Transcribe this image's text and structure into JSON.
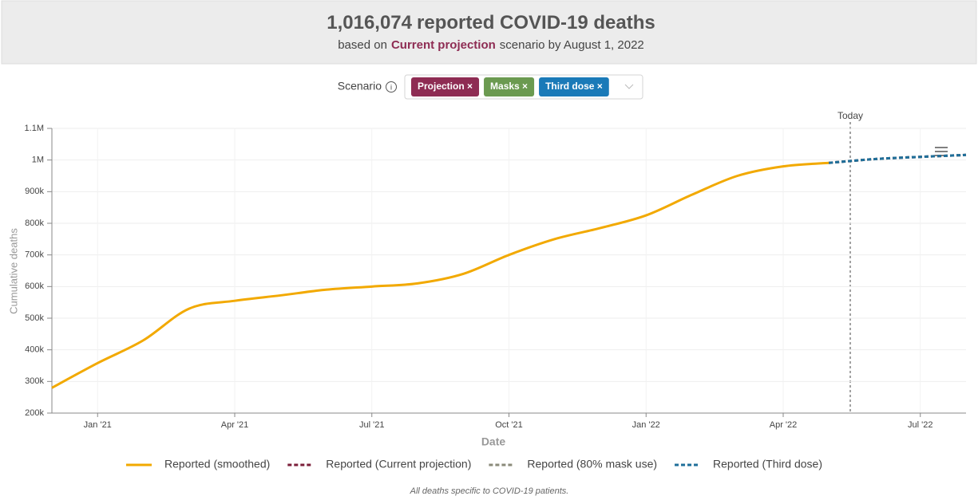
{
  "header": {
    "count": "1,016,074",
    "title": "reported COVID-19 deaths",
    "subtitle_prefix": "based on",
    "subtitle_scenario": "Current projection",
    "subtitle_suffix": "scenario by August 1, 2022"
  },
  "scenario": {
    "label": "Scenario",
    "chips": [
      {
        "label": "Projection ×",
        "color": "#8e2c53"
      },
      {
        "label": "Masks ×",
        "color": "#6b9a50"
      },
      {
        "label": "Third dose ×",
        "color": "#1a7ab8"
      }
    ]
  },
  "chart_data": {
    "type": "line",
    "today_label": "Today",
    "x_label": "Date",
    "y_label": "Cumulative deaths",
    "note": "All deaths specific to COVID-19 patients.",
    "x": [
      "2020-12",
      "2021-01",
      "2021-02",
      "2021-03",
      "2021-04",
      "2021-05",
      "2021-06",
      "2021-07",
      "2021-08",
      "2021-09",
      "2021-10",
      "2021-11",
      "2021-12",
      "2022-01",
      "2022-02",
      "2022-03",
      "2022-04",
      "2022-05",
      "2022-06",
      "2022-07",
      "2022-08"
    ],
    "xlim": [
      "2020-12",
      "2022-08"
    ],
    "xticks": [
      {
        "value": "2021-01",
        "label": "Jan '21"
      },
      {
        "value": "2021-04",
        "label": "Apr '21"
      },
      {
        "value": "2021-07",
        "label": "Jul '21"
      },
      {
        "value": "2021-10",
        "label": "Oct '21"
      },
      {
        "value": "2022-01",
        "label": "Jan '22"
      },
      {
        "value": "2022-04",
        "label": "Apr '22"
      },
      {
        "value": "2022-07",
        "label": "Jul '22"
      }
    ],
    "ylim": [
      200000,
      1100000
    ],
    "yticks": [
      {
        "value": 200000,
        "label": "200k"
      },
      {
        "value": 300000,
        "label": "300k"
      },
      {
        "value": 400000,
        "label": "400k"
      },
      {
        "value": 500000,
        "label": "500k"
      },
      {
        "value": 600000,
        "label": "600k"
      },
      {
        "value": 700000,
        "label": "700k"
      },
      {
        "value": 800000,
        "label": "800k"
      },
      {
        "value": 900000,
        "label": "900k"
      },
      {
        "value": 1000000,
        "label": "1M"
      },
      {
        "value": 1100000,
        "label": "1.1M"
      }
    ],
    "grid": true,
    "series": [
      {
        "name": "Reported (smoothed)",
        "color": "#f2a900",
        "dashed": false,
        "values": [
          280000,
          358000,
          430000,
          530000,
          555000,
          572000,
          590000,
          600000,
          610000,
          640000,
          700000,
          750000,
          785000,
          825000,
          890000,
          950000,
          980000,
          991000,
          null,
          null,
          null
        ]
      },
      {
        "name": "Reported (Current projection)",
        "color": "#7b1f3a",
        "dashed": true,
        "values": [
          null,
          null,
          null,
          null,
          null,
          null,
          null,
          null,
          null,
          null,
          null,
          null,
          null,
          null,
          null,
          null,
          null,
          991000,
          1003000,
          1010000,
          1016074
        ]
      },
      {
        "name": "Reported (80% mask use)",
        "color": "#8a8a7a",
        "dashed": true,
        "values": [
          null,
          null,
          null,
          null,
          null,
          null,
          null,
          null,
          null,
          null,
          null,
          null,
          null,
          null,
          null,
          null,
          null,
          991000,
          1003000,
          1010000,
          1016074
        ]
      },
      {
        "name": "Reported (Third dose)",
        "color": "#1f6f9a",
        "dashed": true,
        "values": [
          null,
          null,
          null,
          null,
          null,
          null,
          null,
          null,
          null,
          null,
          null,
          null,
          null,
          null,
          null,
          null,
          null,
          991000,
          1003000,
          1010000,
          1016074
        ]
      }
    ]
  }
}
